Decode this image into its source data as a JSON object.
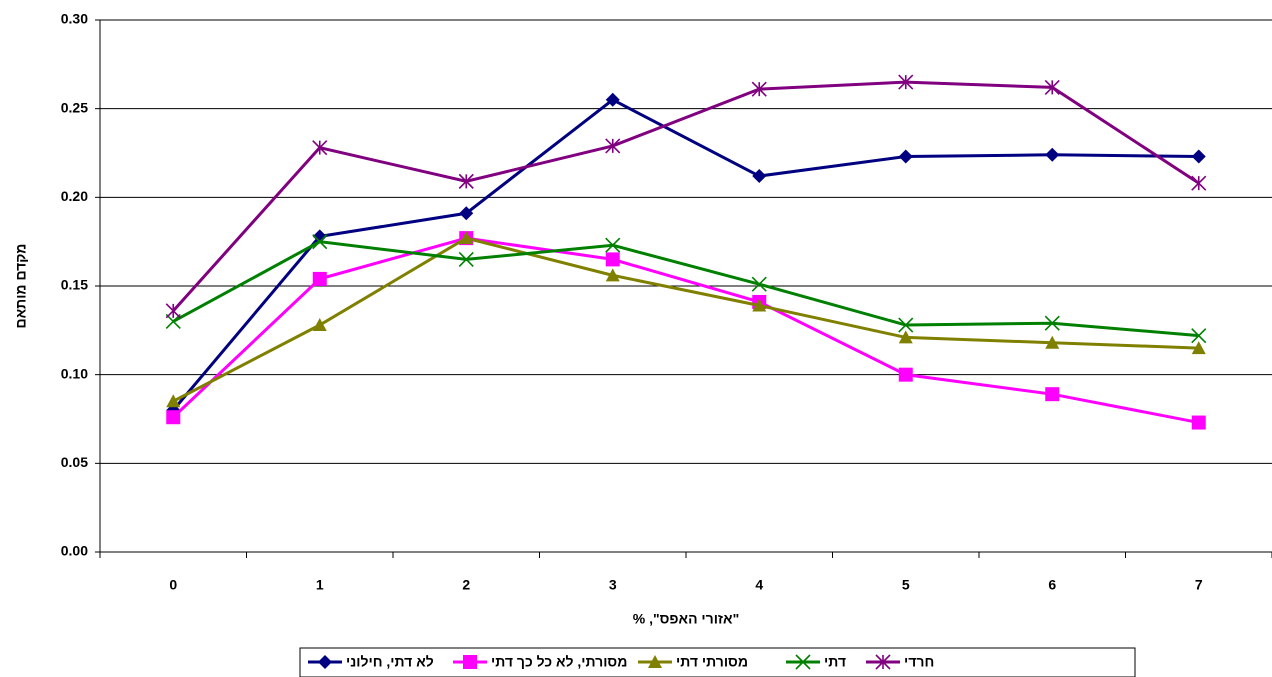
{
  "chart_data": {
    "type": "line",
    "y_label": "מקדם מותאם",
    "x_label": "\"אזורי האפס\", %",
    "categories": [
      "0",
      "1",
      "2",
      "3",
      "4",
      "5",
      "6",
      "7"
    ],
    "ylim": [
      0,
      0.3
    ],
    "yticks": [
      {
        "value": 0,
        "label": "0.00"
      },
      {
        "value": 0.05,
        "label": "0.05"
      },
      {
        "value": 0.1,
        "label": "0.10"
      },
      {
        "value": 0.15,
        "label": "0.15"
      },
      {
        "value": 0.2,
        "label": "0.20"
      },
      {
        "value": 0.25,
        "label": "0.25"
      },
      {
        "value": 0.3,
        "label": "0.30"
      }
    ],
    "grid": true,
    "legend": "bottom",
    "series": [
      {
        "name": "לא דתי, חילוני",
        "color": "#000080",
        "marker": "diamond",
        "values": [
          0.08,
          0.178,
          0.191,
          0.255,
          0.212,
          0.223,
          0.224,
          0.223
        ]
      },
      {
        "name": "מסורתי, לא כל כך דתי",
        "color": "#ff00ff",
        "marker": "square",
        "values": [
          0.076,
          0.154,
          0.177,
          0.165,
          0.141,
          0.1,
          0.089,
          0.073
        ]
      },
      {
        "name": "מסורתי דתי",
        "color": "#808000",
        "marker": "triangle",
        "values": [
          0.085,
          0.128,
          0.177,
          0.156,
          0.139,
          0.121,
          0.118,
          0.115
        ]
      },
      {
        "name": "דתי",
        "color": "#008000",
        "marker": "x",
        "values": [
          0.13,
          0.175,
          0.165,
          0.173,
          0.151,
          0.128,
          0.129,
          0.122
        ]
      },
      {
        "name": "חרדי",
        "color": "#800080",
        "marker": "star",
        "values": [
          0.136,
          0.228,
          0.209,
          0.229,
          0.261,
          0.265,
          0.262,
          0.208
        ]
      }
    ]
  }
}
